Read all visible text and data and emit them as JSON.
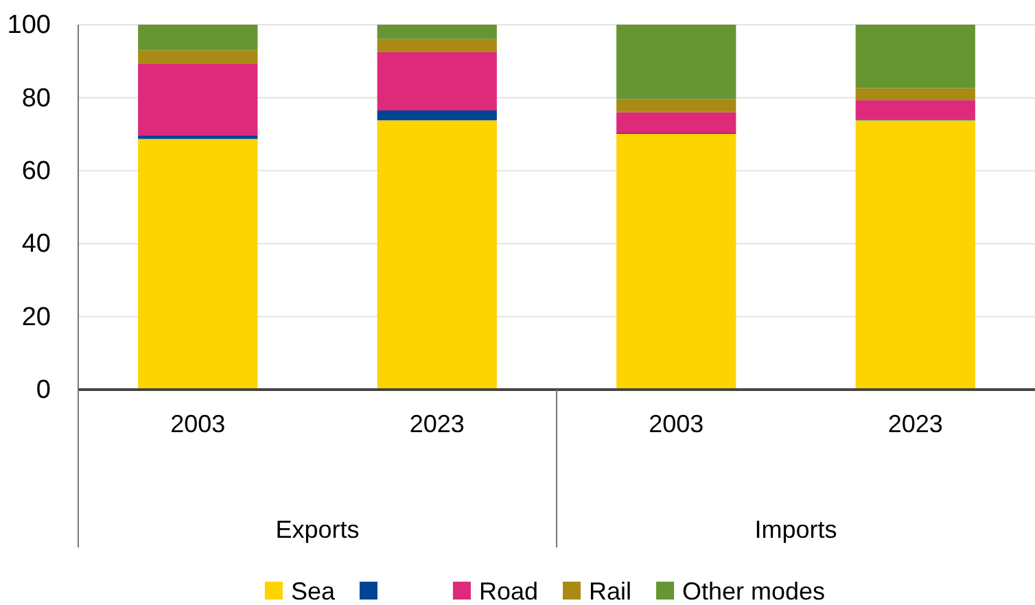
{
  "chart_data": {
    "type": "bar",
    "stacked": true,
    "categories": [
      "2003",
      "2023",
      "2003",
      "2023"
    ],
    "annotations": [
      "Exports",
      "Imports"
    ],
    "series": [
      {
        "name": "Sea",
        "color": "#fdd300",
        "values": [
          68.7,
          73.8,
          70.1,
          73.8
        ]
      },
      {
        "color": "#004494",
        "values": [
          1.0,
          2.7,
          0.2,
          0.2
        ]
      },
      {
        "name": "Road",
        "color": "#dd2a7b",
        "values": [
          19.6,
          16.0,
          5.7,
          5.3
        ]
      },
      {
        "name": "Rail",
        "color": "#a98a14",
        "values": [
          3.7,
          3.6,
          3.6,
          3.3
        ]
      },
      {
        "name": "Other modes",
        "color": "#659632",
        "values": [
          7.0,
          3.9,
          20.4,
          17.4
        ]
      }
    ],
    "ylim": [
      0,
      100
    ],
    "yticks": [
      0,
      20,
      40,
      60,
      80,
      100
    ],
    "grid": "y",
    "legend": "bottom"
  }
}
